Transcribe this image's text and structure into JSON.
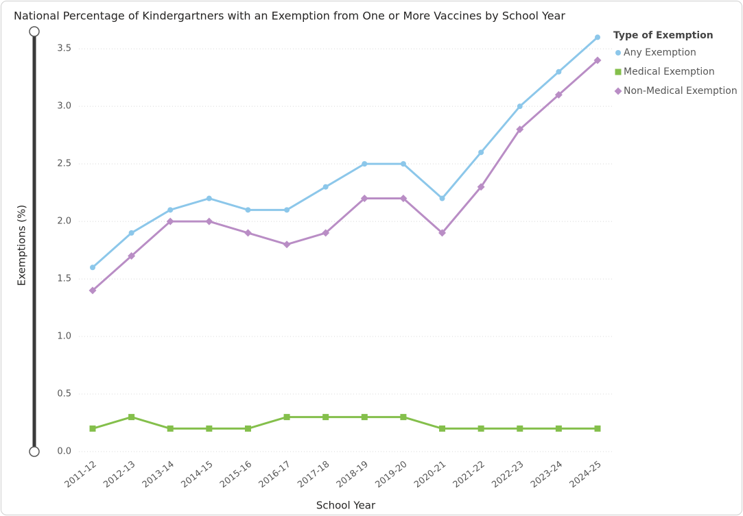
{
  "chart_data": {
    "type": "line",
    "title": "National Percentage of Kindergartners with an Exemption from One or More Vaccines by School Year",
    "x_label": "School Year",
    "y_label": "Exemptions (%)",
    "legend_title": "Type of Exemption",
    "categories": [
      "2011-12",
      "2012-13",
      "2013-14",
      "2014-15",
      "2015-16",
      "2016-17",
      "2017-18",
      "2018-19",
      "2019-20",
      "2020-21",
      "2021-22",
      "2022-23",
      "2023-24",
      "2024-25"
    ],
    "series": [
      {
        "name": "Any Exemption",
        "color": "#8cc7ea",
        "marker": "circle",
        "values": [
          1.6,
          1.9,
          2.1,
          2.2,
          2.1,
          2.1,
          2.3,
          2.5,
          2.5,
          2.2,
          2.6,
          3.0,
          3.3,
          3.6
        ]
      },
      {
        "name": "Medical Exemption",
        "color": "#84bf4b",
        "marker": "square",
        "values": [
          0.2,
          0.3,
          0.2,
          0.2,
          0.2,
          0.3,
          0.3,
          0.3,
          0.3,
          0.2,
          0.2,
          0.2,
          0.2,
          0.2
        ]
      },
      {
        "name": "Non-Medical Exemption",
        "color": "#b98dc5",
        "marker": "diamond",
        "values": [
          1.4,
          1.7,
          2.0,
          2.0,
          1.9,
          1.8,
          1.9,
          2.2,
          2.2,
          1.9,
          2.3,
          2.8,
          3.1,
          3.4
        ]
      }
    ],
    "ylim": [
      0,
      3.65
    ],
    "yticks": [
      {
        "value": 0,
        "label": "0.0"
      },
      0.5,
      {
        "value": 1,
        "label": "1.0"
      },
      1.5,
      {
        "value": 2,
        "label": "2.0"
      },
      2.5,
      {
        "value": 3,
        "label": "3.0"
      },
      3.5
    ],
    "grid": true
  }
}
